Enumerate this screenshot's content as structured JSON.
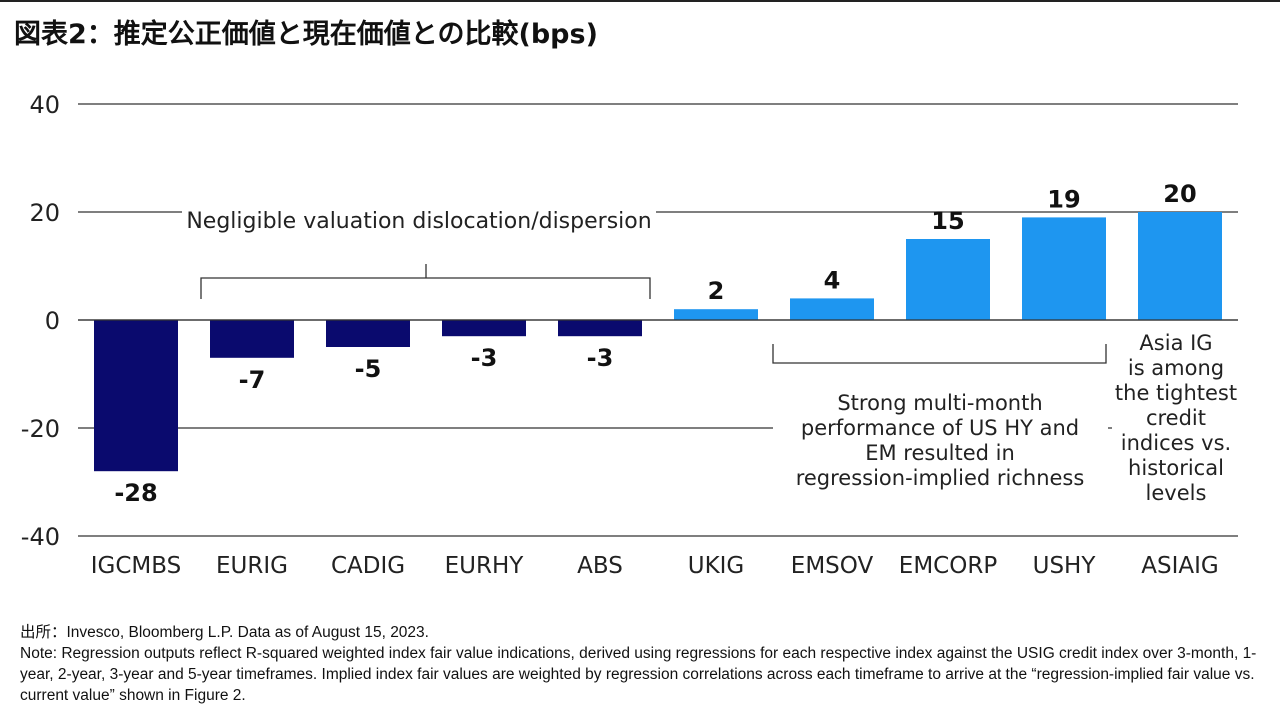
{
  "title": "図表2：推定公正価値と現在価値との比較(bps)",
  "chart_data": {
    "type": "bar",
    "ylim": [
      -40,
      40
    ],
    "yticks": [
      40,
      20,
      0,
      -20,
      -40
    ],
    "ytick_labels": [
      "40",
      "20",
      "0",
      "-20",
      "-40"
    ],
    "categories": [
      "IGCMBS",
      "EURIG",
      "CADIG",
      "EURHY",
      "ABS",
      "UKIG",
      "EMSOV",
      "EMCORP",
      "USHY",
      "ASIAIG"
    ],
    "values": [
      -28,
      -7,
      -5,
      -3,
      -3,
      2,
      4,
      15,
      19,
      20
    ],
    "value_labels": [
      "-28",
      "-7",
      "-5",
      "-3",
      "-3",
      "2",
      "4",
      "15",
      "19",
      "20"
    ],
    "colors": {
      "negative": "#0a0a6e",
      "positive": "#1e96f0",
      "grid": "#333333"
    },
    "annotations": {
      "negligible": "Negligible valuation dislocation/dispersion",
      "strong": [
        "Strong multi-month",
        "performance of US HY and",
        "EM resulted in",
        "regression-implied richness"
      ],
      "asia": [
        "Asia IG",
        "is among",
        "the tightest",
        "credit",
        "indices vs.",
        "historical",
        "levels"
      ]
    }
  },
  "footer": {
    "source": "出所：Invesco, Bloomberg L.P. Data as of August 15, 2023.",
    "note": "Note: Regression outputs reflect R-squared weighted index fair value indications, derived using regressions for each respective index against the USIG credit index over 3-month, 1-year, 2-year, 3-year and 5-year timeframes. Implied index fair values are weighted by regression correlations across each timeframe to arrive at the “regression-implied fair value vs. current value” shown in Figure 2."
  }
}
